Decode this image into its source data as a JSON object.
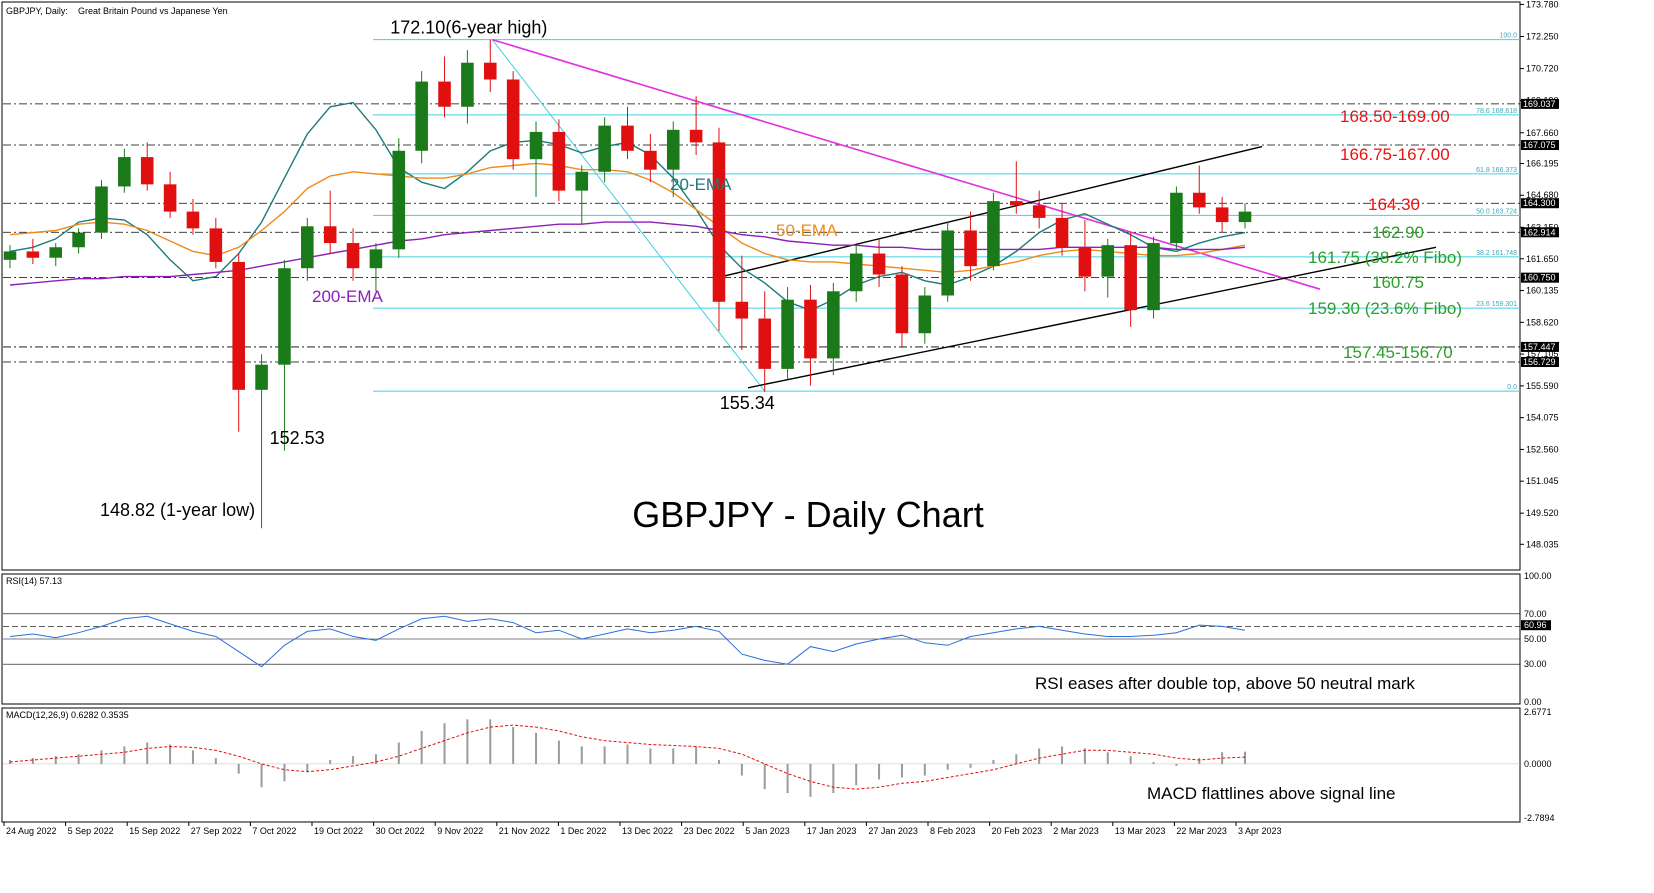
{
  "header": {
    "symbol": "GBPJPY, Daily:",
    "description": "Great Britain Pound vs Japanese Yen"
  },
  "colors": {
    "bull": "#1a7a1a",
    "bear": "#e01010",
    "ema20": "#1f7a7a",
    "ema50": "#f08a1a",
    "ema200": "#8b1fb8",
    "trendline": "#e030e0",
    "fibo": "#40d0e0",
    "channel": "#000000",
    "rsi_line": "#2a6fdb",
    "macd_hist": "#9a9a9a",
    "macd_signal": "#e01010"
  },
  "chart_data": [
    {
      "type": "candlestick",
      "title": "GBPJPY - Daily Chart",
      "ylim": [
        147.0,
        173.8
      ],
      "y_ticks": [
        "173.780",
        "172.250",
        "170.720",
        "169.190",
        "167.660",
        "166.195",
        "164.680",
        "163.150",
        "161.650",
        "160.135",
        "158.620",
        "157.105",
        "155.590",
        "154.075",
        "152.560",
        "151.045",
        "149.520",
        "148.035"
      ],
      "x_ticks": [
        "24 Aug 2022",
        "5 Sep 2022",
        "15 Sep 2022",
        "27 Sep 2022",
        "7 Oct 2022",
        "19 Oct 2022",
        "30 Oct 2022",
        "9 Nov 2022",
        "21 Nov 2022",
        "1 Dec 2022",
        "13 Dec 2022",
        "23 Dec 2022",
        "5 Jan 2023",
        "17 Jan 2023",
        "27 Jan 2023",
        "8 Feb 2023",
        "20 Feb 2023",
        "2 Mar 2023",
        "13 Mar 2023",
        "22 Mar 2023",
        "3 Apr 2023"
      ],
      "right_labels": [
        "169.037",
        "167.075",
        "164.300",
        "162.914",
        "160.750",
        "157.447",
        "156.729"
      ],
      "fibo_labels": [
        "100.0",
        "78.6 168.618",
        "61.8 166.373",
        "50.0 163.724",
        "38.2 161.748",
        "23.6 159.301",
        "0.0"
      ],
      "series": [
        {
          "name": "20-EMA",
          "values": [
            162.0,
            162.2,
            162.6,
            163.4,
            163.6,
            163.5,
            162.8,
            161.6,
            160.6,
            160.8,
            161.9,
            163.4,
            165.5,
            167.6,
            168.9,
            169.1,
            167.8,
            166.0,
            165.3,
            165.0,
            165.8,
            166.8,
            167.2,
            167.3,
            167.1,
            166.7,
            167.0,
            167.2,
            166.6,
            165.5,
            164.0,
            162.3,
            161.2,
            160.5,
            159.6,
            159.2,
            159.7,
            160.4,
            160.8,
            161.0,
            160.6,
            160.4,
            160.8,
            161.3,
            162.0,
            162.9,
            163.5,
            163.8,
            163.3,
            162.8,
            162.2,
            162.0,
            162.4,
            162.7,
            162.9
          ]
        },
        {
          "name": "50-EMA",
          "values": [
            162.8,
            162.9,
            163.0,
            163.3,
            163.4,
            163.3,
            163.0,
            162.5,
            162.0,
            161.8,
            162.2,
            163.0,
            163.9,
            165.0,
            165.6,
            165.8,
            165.7,
            165.6,
            165.5,
            165.5,
            165.7,
            166.0,
            166.1,
            166.2,
            166.1,
            165.9,
            165.9,
            165.8,
            165.4,
            164.8,
            164.0,
            163.2,
            162.4,
            161.9,
            161.6,
            161.5,
            161.5,
            161.4,
            161.3,
            161.2,
            161.1,
            161.0,
            161.1,
            161.3,
            161.5,
            161.8,
            162.0,
            162.1,
            162.0,
            161.9,
            161.8,
            161.8,
            161.9,
            162.1,
            162.3
          ]
        },
        {
          "name": "200-EMA",
          "values": [
            160.4,
            160.5,
            160.6,
            160.7,
            160.7,
            160.8,
            160.8,
            160.8,
            160.9,
            161.0,
            161.1,
            161.3,
            161.5,
            161.7,
            161.9,
            162.1,
            162.3,
            162.5,
            162.6,
            162.8,
            162.9,
            163.0,
            163.1,
            163.2,
            163.3,
            163.3,
            163.4,
            163.4,
            163.4,
            163.3,
            163.2,
            163.0,
            162.8,
            162.7,
            162.5,
            162.4,
            162.3,
            162.3,
            162.2,
            162.2,
            162.1,
            162.1,
            162.1,
            162.1,
            162.1,
            162.1,
            162.2,
            162.2,
            162.2,
            162.2,
            162.2,
            162.1,
            162.1,
            162.1,
            162.2
          ]
        }
      ],
      "candles": [
        [
          161.6,
          162.3,
          161.2,
          162.0
        ],
        [
          162.0,
          162.6,
          161.4,
          161.7
        ],
        [
          161.7,
          162.4,
          161.3,
          162.2
        ],
        [
          162.2,
          163.1,
          161.9,
          162.9
        ],
        [
          162.9,
          165.4,
          162.6,
          165.1
        ],
        [
          165.1,
          166.9,
          164.8,
          166.5
        ],
        [
          166.5,
          167.2,
          164.9,
          165.2
        ],
        [
          165.2,
          165.8,
          163.6,
          163.9
        ],
        [
          163.9,
          164.5,
          162.8,
          163.1
        ],
        [
          163.1,
          163.6,
          161.2,
          161.5
        ],
        [
          161.5,
          161.9,
          153.4,
          155.4
        ],
        [
          155.4,
          157.1,
          148.8,
          156.6
        ],
        [
          156.6,
          161.6,
          152.5,
          161.2
        ],
        [
          161.2,
          163.6,
          160.6,
          163.2
        ],
        [
          163.2,
          164.9,
          161.9,
          162.4
        ],
        [
          162.4,
          163.1,
          160.6,
          161.2
        ],
        [
          161.2,
          162.4,
          160.1,
          162.1
        ],
        [
          162.1,
          167.4,
          161.7,
          166.8
        ],
        [
          166.8,
          170.6,
          166.2,
          170.1
        ],
        [
          170.1,
          171.3,
          168.4,
          168.9
        ],
        [
          168.9,
          171.6,
          168.1,
          171.0
        ],
        [
          171.0,
          172.1,
          169.6,
          170.2
        ],
        [
          170.2,
          170.6,
          165.9,
          166.4
        ],
        [
          166.4,
          168.2,
          164.6,
          167.7
        ],
        [
          167.7,
          168.3,
          164.4,
          164.9
        ],
        [
          164.9,
          166.1,
          163.3,
          165.8
        ],
        [
          165.8,
          168.4,
          165.3,
          168.0
        ],
        [
          168.0,
          168.9,
          166.4,
          166.8
        ],
        [
          166.8,
          167.6,
          165.3,
          165.9
        ],
        [
          165.9,
          168.2,
          164.6,
          167.8
        ],
        [
          167.8,
          169.4,
          166.6,
          167.2
        ],
        [
          167.2,
          167.9,
          158.2,
          159.6
        ],
        [
          159.6,
          161.8,
          157.3,
          158.8
        ],
        [
          158.8,
          160.1,
          155.3,
          156.4
        ],
        [
          156.4,
          160.3,
          155.9,
          159.7
        ],
        [
          159.7,
          160.4,
          155.6,
          156.9
        ],
        [
          156.9,
          160.5,
          156.1,
          160.1
        ],
        [
          160.1,
          162.3,
          159.6,
          161.9
        ],
        [
          161.9,
          162.6,
          160.3,
          160.9
        ],
        [
          160.9,
          161.3,
          157.4,
          158.1
        ],
        [
          158.1,
          160.3,
          157.6,
          159.9
        ],
        [
          159.9,
          163.4,
          159.6,
          163.0
        ],
        [
          163.0,
          163.9,
          160.6,
          161.3
        ],
        [
          161.3,
          164.8,
          161.1,
          164.4
        ],
        [
          164.4,
          166.3,
          163.8,
          164.2
        ],
        [
          164.2,
          164.9,
          163.1,
          163.6
        ],
        [
          163.6,
          164.3,
          161.8,
          162.2
        ],
        [
          162.2,
          163.5,
          160.1,
          160.8
        ],
        [
          160.8,
          162.6,
          159.8,
          162.3
        ],
        [
          162.3,
          162.9,
          158.4,
          159.2
        ],
        [
          159.2,
          162.7,
          158.8,
          162.4
        ],
        [
          162.4,
          165.1,
          162.1,
          164.8
        ],
        [
          164.8,
          166.1,
          163.8,
          164.1
        ],
        [
          164.1,
          164.6,
          162.9,
          163.4
        ],
        [
          163.4,
          164.3,
          163.1,
          163.9
        ]
      ],
      "annotations": [
        {
          "text": "172.10(6-year high)",
          "color": "#000000"
        },
        {
          "text": "152.53",
          "color": "#000000"
        },
        {
          "text": "148.82 (1-year low)",
          "color": "#000000"
        },
        {
          "text": "155.34",
          "color": "#000000"
        },
        {
          "text": "20-EMA",
          "color": "#1f7a7a"
        },
        {
          "text": "50-EMA",
          "color": "#f08a1a"
        },
        {
          "text": "200-EMA",
          "color": "#8b1fb8"
        },
        {
          "text": "168.50-169.00",
          "color": "#ee1111"
        },
        {
          "text": "166.75-167.00",
          "color": "#ee1111"
        },
        {
          "text": "164.30",
          "color": "#ee1111"
        },
        {
          "text": "162.90",
          "color": "#2aa02a"
        },
        {
          "text": "161.75 (38.2% Fibo)",
          "color": "#2aa02a"
        },
        {
          "text": "160.75",
          "color": "#2aa02a"
        },
        {
          "text": "159.30 (23.6% Fibo)",
          "color": "#2aa02a"
        },
        {
          "text": "157.45-156.70",
          "color": "#2aa02a"
        }
      ]
    },
    {
      "type": "line",
      "title": "RSI(14) 57.13",
      "ylim": [
        0,
        100
      ],
      "y_ticks": [
        "100.00",
        "70.00",
        "60.96",
        "50.00",
        "30.00",
        "0.00"
      ],
      "levels": [
        70,
        60,
        50,
        30
      ],
      "series": [
        {
          "values": [
            52,
            54,
            51,
            55,
            60,
            66,
            68,
            62,
            56,
            52,
            40,
            28,
            45,
            56,
            58,
            52,
            49,
            58,
            66,
            68,
            64,
            66,
            63,
            55,
            57,
            50,
            54,
            58,
            55,
            57,
            60,
            56,
            38,
            33,
            30,
            44,
            40,
            46,
            50,
            53,
            47,
            45,
            52,
            55,
            58,
            60,
            57,
            54,
            52,
            52,
            53,
            55,
            61,
            60,
            57
          ]
        }
      ],
      "annotation": "RSI eases after double top, above 50 neutral mark"
    },
    {
      "type": "bar",
      "title": "MACD(12,26,9) 0.6282 0.3535",
      "ylim": [
        -2.7894,
        2.6771
      ],
      "y_ticks": [
        "2.6771",
        "0.0000",
        "-2.7894"
      ],
      "series": [
        {
          "name": "MACD",
          "values": [
            0.2,
            0.3,
            0.4,
            0.5,
            0.7,
            0.9,
            1.1,
            1.0,
            0.7,
            0.3,
            -0.5,
            -1.2,
            -0.9,
            -0.4,
            0.2,
            0.4,
            0.5,
            1.1,
            1.7,
            2.1,
            2.3,
            2.3,
            1.9,
            1.6,
            1.2,
            0.9,
            0.9,
            1.0,
            0.8,
            0.8,
            0.9,
            0.2,
            -0.6,
            -1.3,
            -1.5,
            -1.7,
            -1.5,
            -1.1,
            -0.8,
            -0.7,
            -0.6,
            -0.3,
            -0.2,
            0.2,
            0.5,
            0.8,
            0.9,
            0.8,
            0.6,
            0.4,
            0.1,
            -0.1,
            0.3,
            0.6,
            0.63
          ]
        },
        {
          "name": "Signal",
          "values": [
            0.1,
            0.2,
            0.3,
            0.4,
            0.5,
            0.6,
            0.8,
            0.9,
            0.85,
            0.7,
            0.4,
            0.0,
            -0.3,
            -0.4,
            -0.3,
            -0.1,
            0.1,
            0.4,
            0.8,
            1.2,
            1.6,
            1.9,
            2.0,
            1.9,
            1.7,
            1.4,
            1.2,
            1.1,
            1.0,
            0.95,
            0.9,
            0.8,
            0.5,
            0.0,
            -0.5,
            -0.9,
            -1.2,
            -1.3,
            -1.2,
            -1.0,
            -0.9,
            -0.7,
            -0.5,
            -0.3,
            0.0,
            0.3,
            0.5,
            0.7,
            0.7,
            0.6,
            0.5,
            0.3,
            0.2,
            0.3,
            0.35
          ]
        }
      ],
      "annotation": "MACD flattlines above signal line"
    }
  ]
}
